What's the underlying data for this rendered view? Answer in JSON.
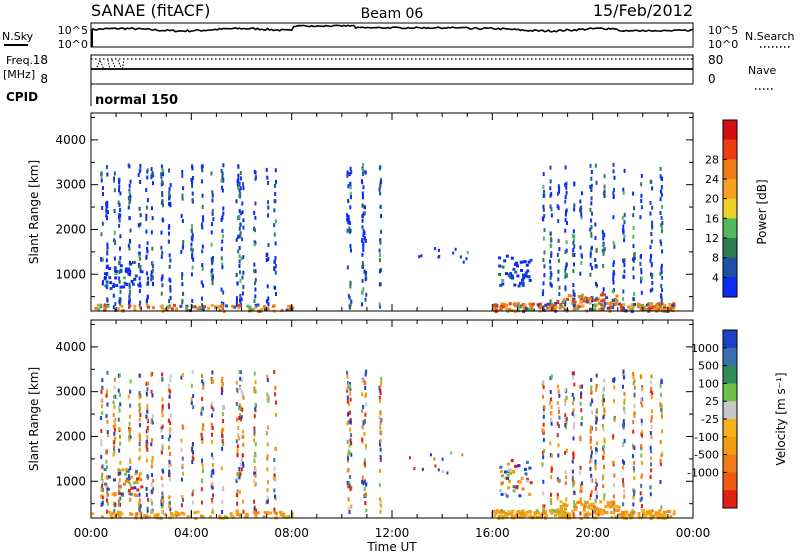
{
  "header": {
    "title": "SANAE (fitACF)",
    "beam": "Beam 06",
    "date": "15/Feb/2012"
  },
  "noise_panel": {
    "left_label": "N.Sky",
    "left_ticks": [
      "10^5",
      "10^0"
    ],
    "right_label": "N.Search",
    "right_ticks": [
      "10^5",
      "10^0"
    ]
  },
  "freq_panel": {
    "left_label_1": "Freq.",
    "left_label_2": "[MHz]",
    "left_ticks": [
      "18",
      "8"
    ],
    "right_label": "Nave",
    "right_ticks": [
      "80",
      "0"
    ]
  },
  "cpid_panel": {
    "label": "CPID",
    "value": "normal 150"
  },
  "x_axis": {
    "label": "Time UT",
    "ticks": [
      "00:00",
      "04:00",
      "08:00",
      "12:00",
      "16:00",
      "20:00",
      "00:00"
    ]
  },
  "chart_data": [
    {
      "type": "heatmap",
      "name": "power",
      "ylabel": "Slant Range [km]",
      "yticks": [
        1000,
        2000,
        3000,
        4000
      ],
      "ylim": [
        180,
        4600
      ],
      "xlim": [
        0,
        24
      ],
      "colorbar": {
        "label": "Power [dB]",
        "ticks": [
          "4",
          "8",
          "12",
          "16",
          "20",
          "24",
          "28"
        ],
        "colors": [
          "#0a2af5",
          "#1f4fa8",
          "#2f7d55",
          "#52b85a",
          "#f0d02a",
          "#f5a020",
          "#f07a18",
          "#ee3b12",
          "#d40f0f"
        ]
      }
    },
    {
      "type": "heatmap",
      "name": "velocity",
      "ylabel": "Slant Range [km]",
      "yticks": [
        1000,
        2000,
        3000,
        4000
      ],
      "ylim": [
        180,
        4600
      ],
      "xlim": [
        0,
        24
      ],
      "colorbar": {
        "label": "Velocity [m s⁻¹]",
        "ticks": [
          "1000",
          "500",
          "100",
          "25",
          "-25",
          "-100",
          "-500",
          "-1000"
        ],
        "colors": [
          "#1e3fc8",
          "#3c6fb0",
          "#2e8b5a",
          "#6cc24a",
          "#c8c8c8",
          "#f5b21a",
          "#f39c12",
          "#f07a18",
          "#ee5a12",
          "#e02010"
        ]
      }
    }
  ]
}
